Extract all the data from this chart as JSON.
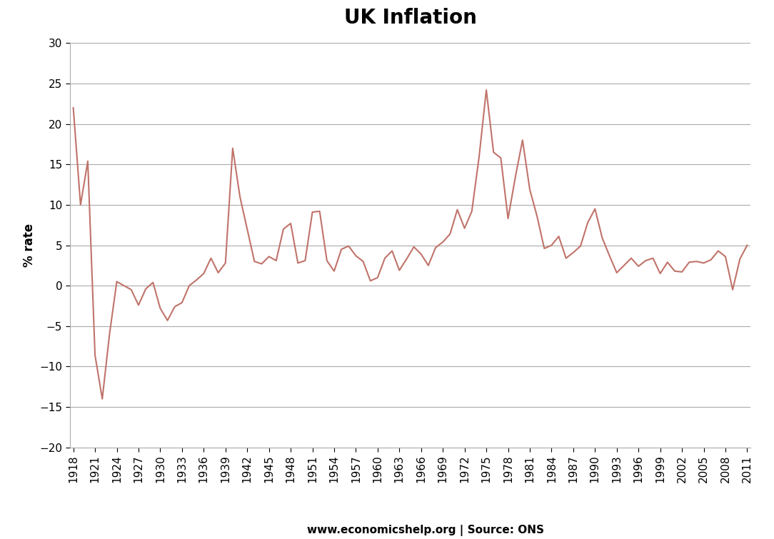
{
  "title": "UK Inflation",
  "ylabel": "% rate",
  "source_text": "www.economicshelp.org | Source: ONS",
  "line_color": "#c0736a",
  "background_color": "#ffffff",
  "ylim": [
    -20,
    30
  ],
  "yticks": [
    -20,
    -15,
    -10,
    -5,
    0,
    5,
    10,
    15,
    20,
    25,
    30
  ],
  "years": [
    1918,
    1919,
    1920,
    1921,
    1922,
    1923,
    1924,
    1925,
    1926,
    1927,
    1928,
    1929,
    1930,
    1931,
    1932,
    1933,
    1934,
    1935,
    1936,
    1937,
    1938,
    1939,
    1940,
    1941,
    1942,
    1943,
    1944,
    1945,
    1946,
    1947,
    1948,
    1949,
    1950,
    1951,
    1952,
    1953,
    1954,
    1955,
    1956,
    1957,
    1958,
    1959,
    1960,
    1961,
    1962,
    1963,
    1964,
    1965,
    1966,
    1967,
    1968,
    1969,
    1970,
    1971,
    1972,
    1973,
    1974,
    1975,
    1976,
    1977,
    1978,
    1979,
    1980,
    1981,
    1982,
    1983,
    1984,
    1985,
    1986,
    1987,
    1988,
    1989,
    1990,
    1991,
    1992,
    1993,
    1994,
    1995,
    1996,
    1997,
    1998,
    1999,
    2000,
    2001,
    2002,
    2003,
    2004,
    2005,
    2006,
    2007,
    2008,
    2009,
    2010,
    2011
  ],
  "values": [
    22.0,
    10.0,
    15.4,
    -8.6,
    -14.0,
    -6.0,
    0.5,
    0.0,
    -0.5,
    -2.4,
    -0.4,
    0.4,
    -2.8,
    -4.3,
    -2.6,
    -2.1,
    0.0,
    0.7,
    1.5,
    3.4,
    1.6,
    2.8,
    17.0,
    11.0,
    7.0,
    3.0,
    2.7,
    3.6,
    3.1,
    7.0,
    7.7,
    2.8,
    3.1,
    9.1,
    9.2,
    3.1,
    1.8,
    4.5,
    4.9,
    3.7,
    3.0,
    0.6,
    1.0,
    3.4,
    4.3,
    1.9,
    3.3,
    4.8,
    3.9,
    2.5,
    4.7,
    5.4,
    6.4,
    9.4,
    7.1,
    9.2,
    15.9,
    24.2,
    16.5,
    15.8,
    8.3,
    13.4,
    18.0,
    11.9,
    8.6,
    4.6,
    5.0,
    6.1,
    3.4,
    4.1,
    4.9,
    7.8,
    9.5,
    5.9,
    3.7,
    1.6,
    2.5,
    3.4,
    2.4,
    3.1,
    3.4,
    1.5,
    2.9,
    1.8,
    1.7,
    2.9,
    3.0,
    2.8,
    3.2,
    4.3,
    3.6,
    -0.5,
    3.3,
    5.0
  ],
  "title_fontsize": 20,
  "tick_fontsize": 11,
  "ylabel_fontsize": 12,
  "source_fontsize": 11,
  "linewidth": 1.5,
  "grid_color": "#aaaaaa",
  "spine_color": "#aaaaaa"
}
